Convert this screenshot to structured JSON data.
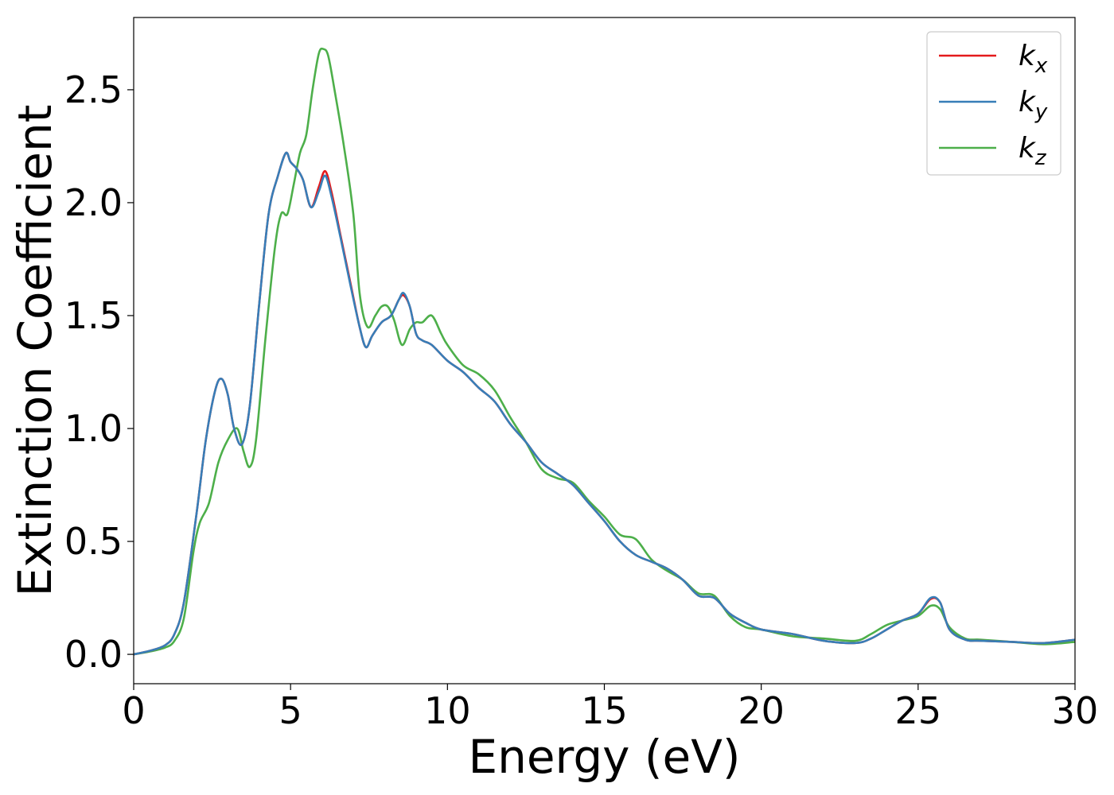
{
  "chart_data": {
    "type": "line",
    "title": "",
    "xlabel": "Energy (eV)",
    "ylabel": "Extinction Coefficient",
    "xlim": [
      0,
      30
    ],
    "ylim": [
      -0.13,
      2.82
    ],
    "xticks": [
      0,
      5,
      10,
      15,
      20,
      25,
      30
    ],
    "xtick_labels": [
      "0",
      "5",
      "10",
      "15",
      "20",
      "25",
      "30"
    ],
    "yticks": [
      0.0,
      0.5,
      1.0,
      1.5,
      2.0,
      2.5
    ],
    "ytick_labels": [
      "0.0",
      "0.5",
      "1.0",
      "1.5",
      "2.0",
      "2.5"
    ],
    "grid": false,
    "legend_position": "top-right",
    "series": [
      {
        "name": "k",
        "subscript": "x",
        "color": "#e41a1c",
        "x": [
          0,
          0.5,
          1.0,
          1.3,
          1.6,
          2.0,
          2.3,
          2.6,
          2.8,
          3.0,
          3.2,
          3.45,
          3.7,
          4.0,
          4.3,
          4.6,
          4.85,
          5.0,
          5.2,
          5.4,
          5.65,
          5.9,
          6.1,
          6.3,
          6.6,
          6.9,
          7.2,
          7.4,
          7.6,
          7.9,
          8.2,
          8.45,
          8.6,
          8.8,
          9.0,
          9.2,
          9.5,
          10.0,
          10.5,
          11.0,
          11.5,
          12.0,
          12.5,
          13.0,
          13.5,
          14.0,
          14.5,
          15.0,
          15.5,
          16.0,
          16.5,
          17.0,
          17.5,
          18.0,
          18.5,
          19.0,
          19.5,
          20.0,
          21.0,
          22.0,
          23.0,
          23.5,
          24.0,
          24.5,
          25.0,
          25.4,
          25.7,
          26.0,
          26.5,
          27.0,
          28.0,
          29.0,
          30.0
        ],
        "y": [
          0.0,
          0.015,
          0.04,
          0.09,
          0.23,
          0.62,
          0.95,
          1.17,
          1.22,
          1.15,
          1.0,
          0.93,
          1.1,
          1.55,
          1.95,
          2.12,
          2.22,
          2.18,
          2.15,
          2.1,
          1.98,
          2.07,
          2.14,
          2.05,
          1.85,
          1.65,
          1.45,
          1.36,
          1.41,
          1.47,
          1.5,
          1.57,
          1.59,
          1.54,
          1.42,
          1.39,
          1.37,
          1.3,
          1.25,
          1.18,
          1.12,
          1.02,
          0.94,
          0.85,
          0.8,
          0.75,
          0.67,
          0.59,
          0.5,
          0.44,
          0.41,
          0.38,
          0.33,
          0.26,
          0.25,
          0.18,
          0.14,
          0.11,
          0.09,
          0.06,
          0.05,
          0.07,
          0.11,
          0.15,
          0.18,
          0.245,
          0.23,
          0.11,
          0.065,
          0.06,
          0.055,
          0.05,
          0.065
        ]
      },
      {
        "name": "k",
        "subscript": "y",
        "color": "#377eb8",
        "x": [
          0,
          0.5,
          1.0,
          1.3,
          1.6,
          2.0,
          2.3,
          2.6,
          2.8,
          3.0,
          3.2,
          3.45,
          3.7,
          4.0,
          4.3,
          4.6,
          4.85,
          5.0,
          5.2,
          5.4,
          5.65,
          5.9,
          6.1,
          6.3,
          6.6,
          6.9,
          7.2,
          7.4,
          7.6,
          7.9,
          8.2,
          8.45,
          8.6,
          8.8,
          9.0,
          9.2,
          9.5,
          10.0,
          10.5,
          11.0,
          11.5,
          12.0,
          12.5,
          13.0,
          13.5,
          14.0,
          14.5,
          15.0,
          15.5,
          16.0,
          16.5,
          17.0,
          17.5,
          18.0,
          18.5,
          19.0,
          19.5,
          20.0,
          21.0,
          22.0,
          23.0,
          23.5,
          24.0,
          24.5,
          25.0,
          25.4,
          25.7,
          26.0,
          26.5,
          27.0,
          28.0,
          29.0,
          30.0
        ],
        "y": [
          0.0,
          0.015,
          0.04,
          0.09,
          0.23,
          0.62,
          0.95,
          1.17,
          1.22,
          1.15,
          1.0,
          0.93,
          1.1,
          1.55,
          1.95,
          2.12,
          2.22,
          2.18,
          2.15,
          2.1,
          1.98,
          2.05,
          2.12,
          2.03,
          1.84,
          1.64,
          1.45,
          1.36,
          1.41,
          1.47,
          1.5,
          1.57,
          1.6,
          1.54,
          1.42,
          1.39,
          1.37,
          1.3,
          1.25,
          1.18,
          1.12,
          1.02,
          0.94,
          0.85,
          0.8,
          0.75,
          0.67,
          0.59,
          0.5,
          0.44,
          0.41,
          0.38,
          0.33,
          0.26,
          0.25,
          0.18,
          0.14,
          0.11,
          0.09,
          0.06,
          0.05,
          0.07,
          0.11,
          0.15,
          0.18,
          0.25,
          0.23,
          0.11,
          0.065,
          0.06,
          0.055,
          0.05,
          0.065
        ]
      },
      {
        "name": "k",
        "subscript": "z",
        "color": "#4daf4a",
        "x": [
          0,
          0.5,
          1.0,
          1.3,
          1.6,
          1.9,
          2.1,
          2.4,
          2.7,
          3.0,
          3.3,
          3.5,
          3.7,
          3.9,
          4.2,
          4.5,
          4.7,
          4.9,
          5.1,
          5.3,
          5.5,
          5.7,
          5.9,
          6.05,
          6.2,
          6.4,
          6.7,
          7.0,
          7.2,
          7.45,
          7.7,
          7.9,
          8.1,
          8.3,
          8.55,
          8.8,
          9.0,
          9.2,
          9.5,
          9.8,
          10.0,
          10.5,
          11.0,
          11.5,
          12.0,
          12.5,
          13.0,
          13.5,
          14.0,
          14.5,
          15.0,
          15.5,
          16.0,
          16.5,
          17.0,
          17.5,
          18.0,
          18.5,
          19.0,
          19.5,
          20.0,
          21.0,
          22.0,
          23.0,
          23.5,
          24.0,
          24.5,
          25.0,
          25.4,
          25.7,
          26.0,
          26.5,
          27.0,
          28.0,
          29.0,
          30.0
        ],
        "y": [
          0.0,
          0.012,
          0.03,
          0.06,
          0.16,
          0.45,
          0.58,
          0.67,
          0.85,
          0.95,
          1.0,
          0.9,
          0.83,
          0.95,
          1.4,
          1.8,
          1.95,
          1.95,
          2.08,
          2.22,
          2.3,
          2.5,
          2.66,
          2.68,
          2.65,
          2.5,
          2.25,
          1.95,
          1.6,
          1.45,
          1.5,
          1.54,
          1.54,
          1.48,
          1.37,
          1.44,
          1.47,
          1.47,
          1.5,
          1.42,
          1.37,
          1.28,
          1.24,
          1.17,
          1.05,
          0.94,
          0.82,
          0.78,
          0.76,
          0.68,
          0.61,
          0.53,
          0.51,
          0.42,
          0.37,
          0.33,
          0.27,
          0.26,
          0.17,
          0.12,
          0.11,
          0.08,
          0.07,
          0.06,
          0.09,
          0.13,
          0.15,
          0.17,
          0.215,
          0.2,
          0.12,
          0.07,
          0.065,
          0.055,
          0.045,
          0.055
        ]
      }
    ]
  }
}
